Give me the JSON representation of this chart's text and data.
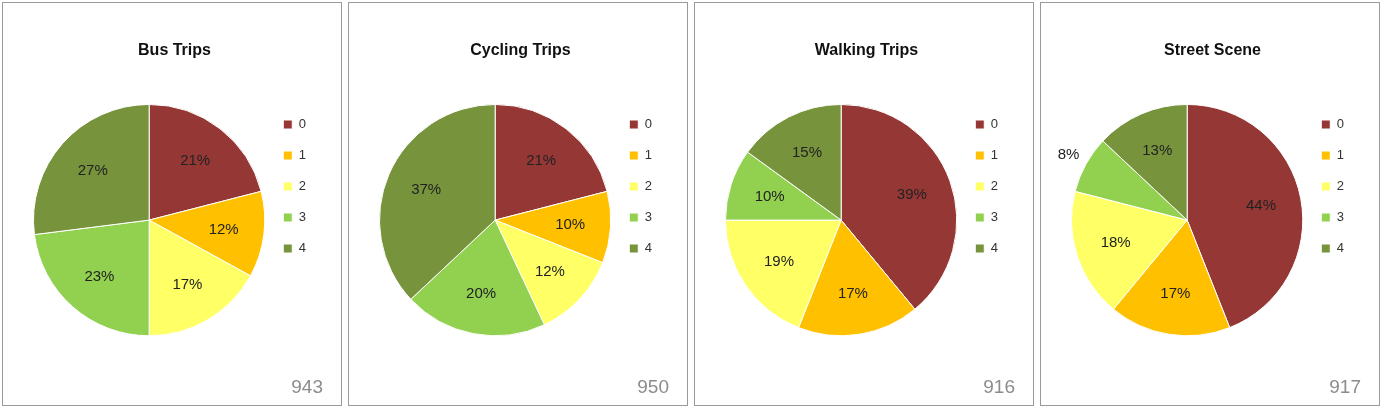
{
  "chart_data": [
    {
      "type": "pie",
      "title": "Bus Trips",
      "categories": [
        "0",
        "1",
        "2",
        "3",
        "4"
      ],
      "values": [
        21,
        12,
        17,
        23,
        27
      ],
      "value_labels": [
        "21%",
        "12%",
        "17%",
        "23%",
        "27%"
      ],
      "colors": [
        "#953735",
        "#ffc000",
        "#ffff66",
        "#92d050",
        "#77933c"
      ],
      "legend": "right",
      "annotations": [
        "943"
      ]
    },
    {
      "type": "pie",
      "title": "Cycling Trips",
      "categories": [
        "0",
        "1",
        "2",
        "3",
        "4"
      ],
      "values": [
        21,
        10,
        12,
        20,
        37
      ],
      "value_labels": [
        "21%",
        "10%",
        "12%",
        "20%",
        "37%"
      ],
      "colors": [
        "#953735",
        "#ffc000",
        "#ffff66",
        "#92d050",
        "#77933c"
      ],
      "legend": "right",
      "annotations": [
        "950"
      ]
    },
    {
      "type": "pie",
      "title": "Walking Trips",
      "categories": [
        "0",
        "1",
        "2",
        "3",
        "4"
      ],
      "values": [
        39,
        17,
        19,
        10,
        15
      ],
      "value_labels": [
        "39%",
        "17%",
        "19%",
        "10%",
        "15%"
      ],
      "colors": [
        "#953735",
        "#ffc000",
        "#ffff66",
        "#92d050",
        "#77933c"
      ],
      "legend": "right",
      "annotations": [
        "916"
      ]
    },
    {
      "type": "pie",
      "title": "Street Scene",
      "categories": [
        "0",
        "1",
        "2",
        "3",
        "4"
      ],
      "values": [
        44,
        17,
        18,
        8,
        13
      ],
      "value_labels": [
        "44%",
        "17%",
        "18%",
        "8%",
        "13%"
      ],
      "colors": [
        "#953735",
        "#ffc000",
        "#ffff66",
        "#92d050",
        "#77933c"
      ],
      "legend": "right",
      "annotations": [
        "917"
      ]
    }
  ]
}
